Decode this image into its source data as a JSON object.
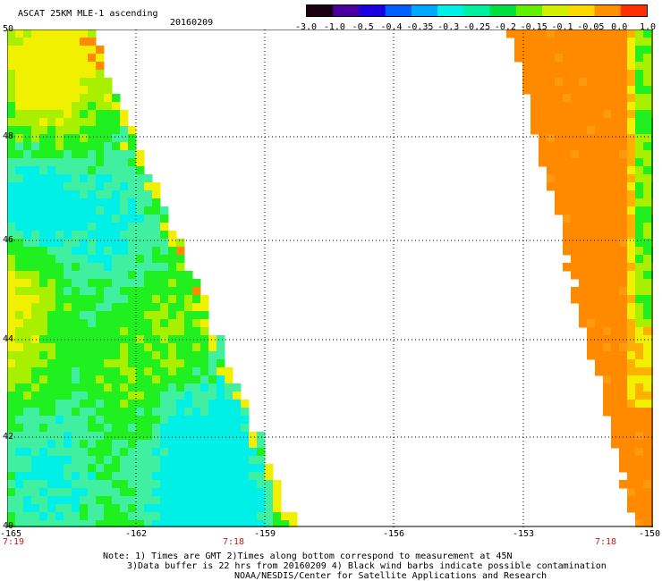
{
  "header": {
    "title": "ASCAT 25KM MLE-1 ascending",
    "date": "20160209"
  },
  "colorbar": {
    "labels": [
      "-3.0",
      "-1.0",
      "-0.5",
      "-0.4",
      "-0.35",
      "-0.3",
      "-0.25",
      "-0.2",
      "-0.15",
      "-0.1",
      "-0.05",
      "0.0",
      "1.0"
    ],
    "colors": [
      "#1a0013",
      "#4a00a0",
      "#1800e0",
      "#0060ff",
      "#00a8ff",
      "#00f0e8",
      "#00f0a0",
      "#00e040",
      "#60f000",
      "#d0f000",
      "#ffd800",
      "#ff9000",
      "#ff3000"
    ]
  },
  "axes": {
    "lat_labels": [
      "50",
      "48",
      "46",
      "44",
      "42",
      "40"
    ],
    "lon_labels": [
      "-165",
      "-162",
      "-159",
      "-156",
      "-153",
      "-150"
    ]
  },
  "times": {
    "left": "7:19",
    "middle": "7:18",
    "right": "7:18"
  },
  "notes": {
    "line1": "Note: 1) Times are GMT 2)Times along bottom correspond to measurement at 45N",
    "line2": "3)Data buffer is 22 hrs from 20160209 4) Black wind barbs indicate possible contamination",
    "line3": "NOAA/NESDIS/Center for Satellite Applications and Research"
  },
  "palette": {
    "orange": "#ff8a00",
    "cyan": "#00f0e8",
    "green": "#20f020",
    "yellow": "#f0f000",
    "grid": "#000000"
  }
}
